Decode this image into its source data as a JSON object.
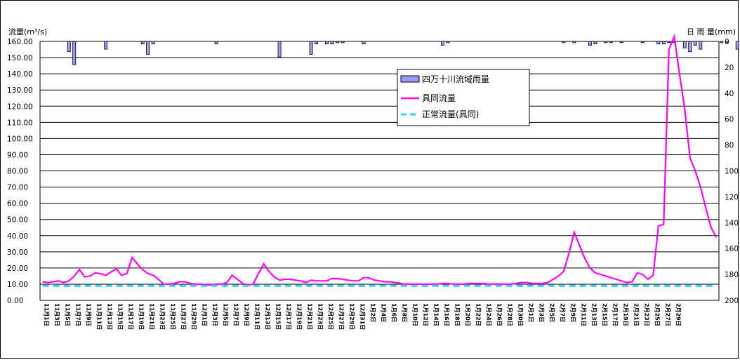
{
  "chart_data": {
    "type": "bar+line",
    "ylabel_left": "流量(m³/s)",
    "ylabel_right": "日 雨 量(mm)",
    "left_axis": {
      "min": 0,
      "max": 160,
      "step": 10,
      "decimals": 2
    },
    "right_axis": {
      "min": 0,
      "max": 200,
      "step": 20,
      "inverted": true,
      "tick_labels": [
        "0",
        "20",
        "40",
        "60",
        "80",
        "100",
        "120",
        "140",
        "160",
        "180",
        "200"
      ]
    },
    "grid": true,
    "legend_position": "top-right",
    "series": [
      {
        "name": "四万十川流域雨量",
        "type": "bar",
        "axis": "right",
        "color": "#9999FF",
        "points": [
          [
            5,
            8
          ],
          [
            6,
            18
          ],
          [
            12,
            6
          ],
          [
            19,
            2
          ],
          [
            20,
            10
          ],
          [
            21,
            2
          ],
          [
            33,
            2
          ],
          [
            45,
            12
          ],
          [
            51,
            10
          ],
          [
            52,
            2
          ],
          [
            54,
            2
          ],
          [
            55,
            2
          ],
          [
            56,
            1
          ],
          [
            57,
            1
          ],
          [
            61,
            2
          ],
          [
            76,
            3
          ],
          [
            77,
            1
          ],
          [
            99,
            1
          ],
          [
            101,
            1
          ],
          [
            104,
            3
          ],
          [
            105,
            2
          ],
          [
            107,
            1
          ],
          [
            108,
            1
          ],
          [
            110,
            1
          ],
          [
            114,
            1
          ],
          [
            117,
            2
          ],
          [
            118,
            2
          ],
          [
            119,
            1
          ],
          [
            120,
            1
          ],
          [
            122,
            5
          ],
          [
            123,
            8
          ],
          [
            124,
            3
          ],
          [
            125,
            6
          ],
          [
            130,
            1
          ],
          [
            132,
            6
          ],
          [
            133,
            2
          ],
          [
            133,
            0
          ],
          [
            137,
            1
          ],
          [
            137,
            0
          ],
          [
            129,
            1
          ],
          [
            140,
            1
          ],
          [
            141,
            2
          ],
          [
            142,
            4
          ],
          [
            143,
            3
          ],
          [
            144,
            1
          ],
          [
            145,
            2
          ],
          [
            146,
            1
          ],
          [
            147,
            1
          ],
          [
            148,
            1
          ],
          [
            149,
            1
          ],
          [
            150,
            1
          ],
          [
            151,
            1
          ],
          [
            152,
            1
          ],
          [
            153,
            1
          ],
          [
            154,
            1
          ],
          [
            155,
            4
          ],
          [
            156,
            10
          ],
          [
            157,
            3
          ],
          [
            158,
            2
          ],
          [
            159,
            1
          ],
          [
            160,
            1
          ],
          [
            161,
            1
          ],
          [
            162,
            1
          ],
          [
            163,
            1
          ],
          [
            164,
            1
          ],
          [
            165,
            1
          ],
          [
            166,
            1
          ],
          [
            167,
            1
          ],
          [
            168,
            1
          ],
          [
            169,
            1
          ],
          [
            170,
            1
          ],
          [
            171,
            1
          ],
          [
            172,
            1
          ],
          [
            173,
            1
          ],
          [
            174,
            1
          ],
          [
            175,
            1
          ],
          [
            176,
            1
          ],
          [
            177,
            1
          ],
          [
            178,
            1
          ],
          [
            179,
            1
          ],
          [
            180,
            1
          ],
          [
            181,
            1
          ],
          [
            182,
            1
          ],
          [
            183,
            1
          ],
          [
            184,
            1
          ],
          [
            185,
            1
          ],
          [
            186,
            1
          ],
          [
            187,
            1
          ]
        ]
      },
      {
        "name": "具同流量",
        "type": "line",
        "axis": "left",
        "color": "#FF00FF",
        "values": [
          11.5,
          11,
          11.5,
          12,
          11,
          12,
          15,
          19,
          14.5,
          15,
          17,
          16.5,
          15.5,
          17.5,
          19.5,
          15.5,
          16.5,
          26.5,
          22.5,
          19,
          16.5,
          15.5,
          13,
          10,
          10,
          10.5,
          11.5,
          11.5,
          10.5,
          10,
          10,
          9.5,
          9.5,
          10,
          10,
          11,
          15.5,
          13,
          10.5,
          9.5,
          10,
          16.5,
          22.5,
          18,
          14.5,
          12.5,
          13,
          13,
          12.5,
          12,
          11,
          12.5,
          12,
          12,
          12,
          13.5,
          13.5,
          13,
          12.5,
          12,
          12,
          14,
          14,
          12.5,
          12,
          11.5,
          11.5,
          11,
          10.5,
          10,
          10,
          10,
          10,
          10,
          10,
          10,
          10.5,
          10.5,
          10,
          10,
          10,
          10.5,
          10.5,
          10.5,
          10.5,
          10,
          10,
          10,
          10,
          10,
          10.5,
          11,
          11,
          10.5,
          10.5,
          10.5,
          11,
          13,
          15,
          18,
          29,
          42,
          34,
          26,
          20,
          17,
          16,
          15,
          14,
          13,
          12,
          11,
          11.5,
          17,
          16,
          13,
          15.5,
          46,
          47,
          155,
          163,
          140,
          118,
          88,
          80,
          70,
          57,
          45,
          39
        ]
      },
      {
        "name": "正常流量(具同)",
        "type": "line",
        "axis": "left",
        "color": "#33CCFF",
        "dashed": true,
        "value": 9
      }
    ],
    "x_labels": [
      "11月1日",
      "11月3日",
      "11月5日",
      "11月7日",
      "11月9日",
      "11月11日",
      "11月13日",
      "11月15日",
      "11月17日",
      "11月19日",
      "11月21日",
      "11月23日",
      "11月25日",
      "11月27日",
      "11月29日",
      "12月1日",
      "12月3日",
      "12月5日",
      "12月7日",
      "12月9日",
      "12月11日",
      "12月13日",
      "12月15日",
      "12月17日",
      "12月19日",
      "12月21日",
      "12月23日",
      "12月25日",
      "12月27日",
      "12月29日",
      "12月31日",
      "1月2日",
      "1月4日",
      "1月6日",
      "1月8日",
      "1月10日",
      "1月12日",
      "1月14日",
      "1月16日",
      "1月18日",
      "1月20日",
      "1月22日",
      "1月24日",
      "1月26日",
      "1月28日",
      "1月30日",
      "2月1日",
      "2月3日",
      "2月5日",
      "2月7日",
      "2月9日",
      "2月11日",
      "2月13日",
      "2月15日",
      "2月17日",
      "2月19日",
      "2月21日",
      "2月23日",
      "2月25日",
      "2月27日",
      "2月29日"
    ]
  }
}
